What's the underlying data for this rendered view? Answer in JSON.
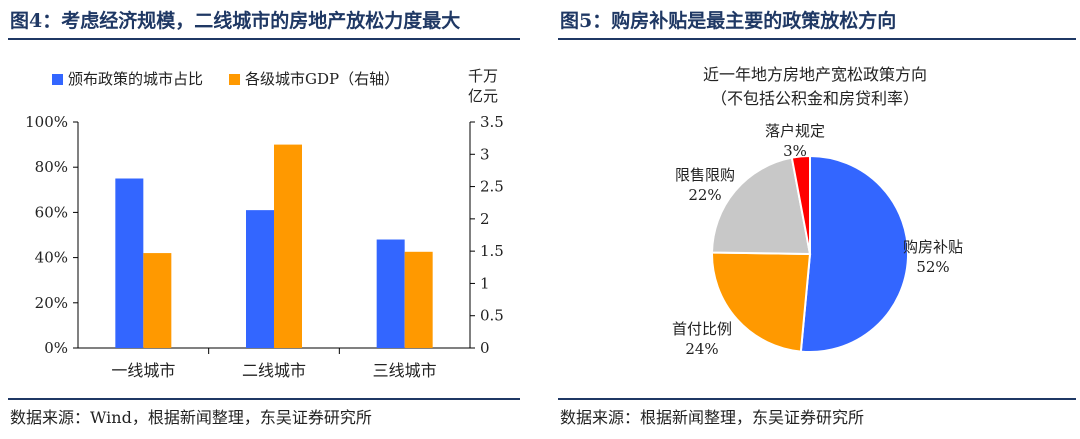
{
  "left": {
    "title": "图4：考虑经济规模，二线城市的房地产放松力度最大",
    "source": "数据来源：Wind，根据新闻整理，东吴证券研究所",
    "chart_data": {
      "type": "bar",
      "categories": [
        "一线城市",
        "二线城市",
        "三线城市"
      ],
      "series": [
        {
          "name": "颁布政策的城市占比",
          "axis": "left",
          "color": "#3366ff",
          "values": [
            0.75,
            0.61,
            0.48
          ]
        },
        {
          "name": "各级城市GDP（右轴）",
          "axis": "right",
          "color": "#ff9900",
          "values": [
            1.47,
            3.15,
            1.49
          ]
        }
      ],
      "y_left": {
        "range": [
          0,
          1
        ],
        "ticks": [
          "0%",
          "20%",
          "40%",
          "60%",
          "80%",
          "100%"
        ]
      },
      "y_right": {
        "range": [
          0,
          3.5
        ],
        "ticks": [
          "0",
          "0.5",
          "1",
          "1.5",
          "2",
          "2.5",
          "3",
          "3.5"
        ],
        "unit_line1": "千万",
        "unit_line2": "亿元"
      },
      "legend": "top"
    }
  },
  "right": {
    "title": "图5：购房补贴是最主要的政策放松方向",
    "source": "数据来源：根据新闻整理，东吴证券研究所",
    "chart_data": {
      "type": "pie",
      "title_line1": "近一年地方房地产宽松政策方向",
      "title_line2": "（不包括公积金和房贷利率）",
      "slices": [
        {
          "label": "购房补贴",
          "pct_label": "52%",
          "value": 52,
          "color": "#3366ff"
        },
        {
          "label": "首付比例",
          "pct_label": "24%",
          "value": 24,
          "color": "#ff9900"
        },
        {
          "label": "限售限购",
          "pct_label": "22%",
          "value": 22,
          "color": "#c8c8c8"
        },
        {
          "label": "落户规定",
          "pct_label": "3%",
          "value": 3,
          "color": "#ff0000"
        }
      ]
    }
  }
}
